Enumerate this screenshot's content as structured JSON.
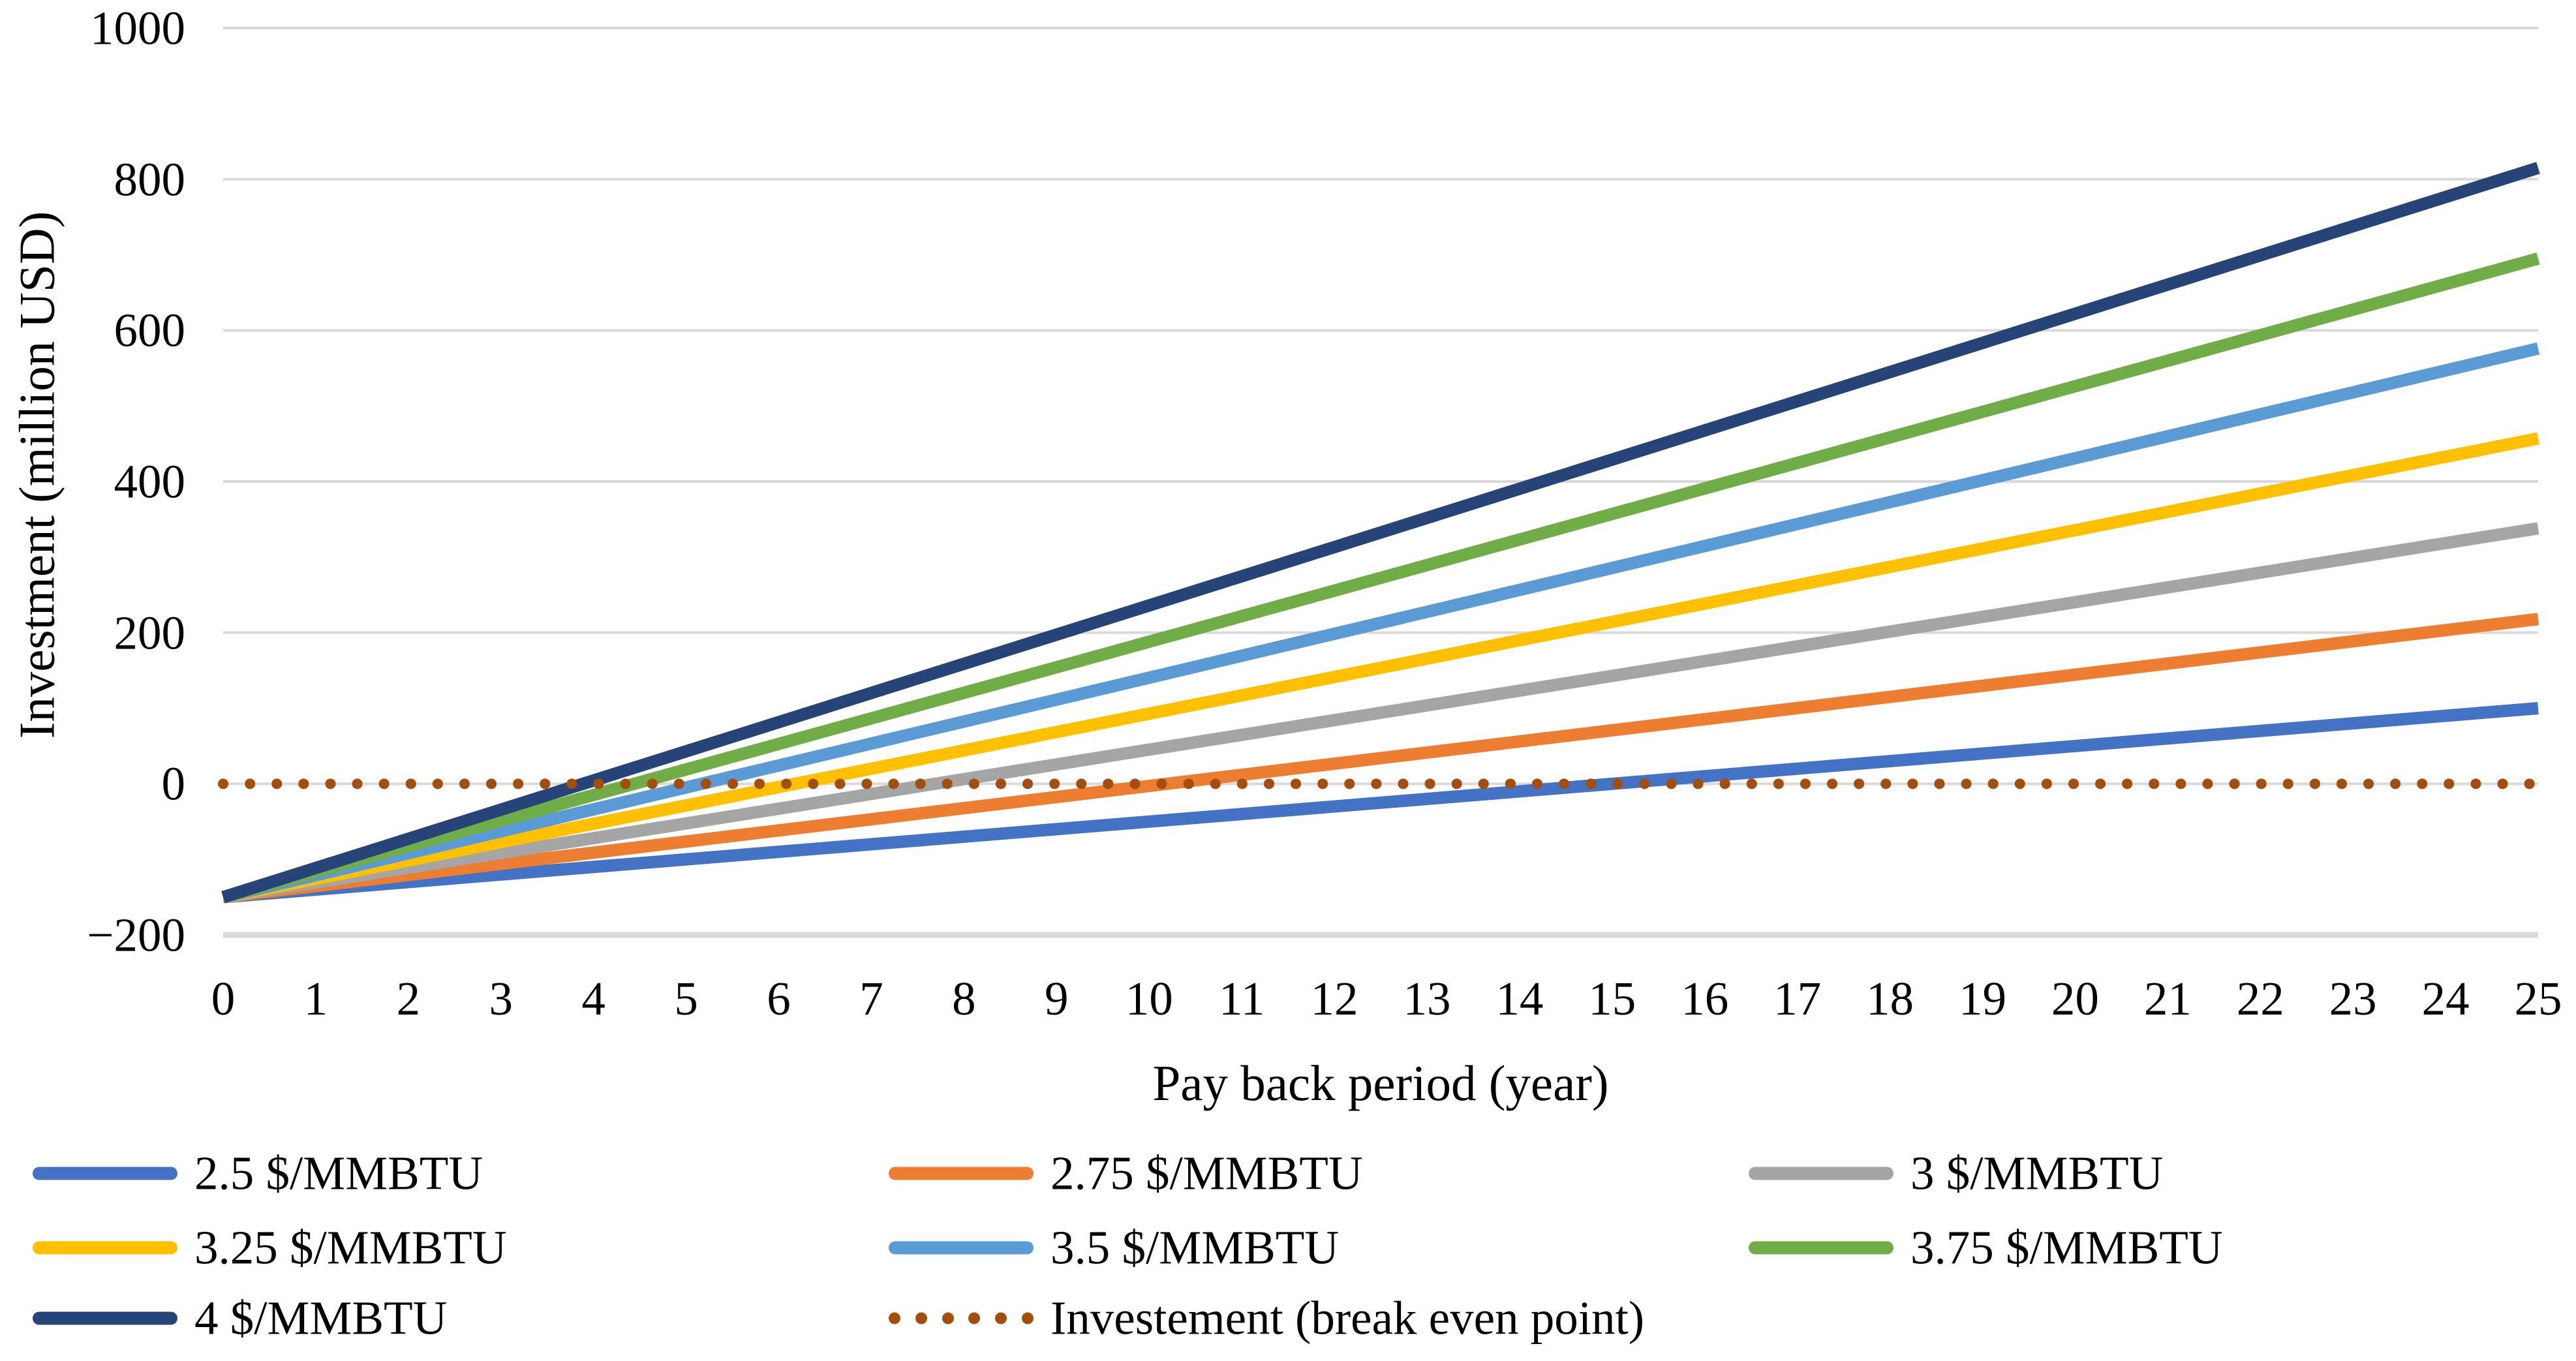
{
  "chart_data": {
    "type": "line",
    "title": "",
    "xlabel": "Pay back period (year)",
    "ylabel": "Investment (million USD)",
    "xlim": [
      0,
      25
    ],
    "ylim": [
      -200,
      1000
    ],
    "x_ticks": [
      0,
      1,
      2,
      3,
      4,
      5,
      6,
      7,
      8,
      9,
      10,
      11,
      12,
      13,
      14,
      15,
      16,
      17,
      18,
      19,
      20,
      21,
      22,
      23,
      24,
      25
    ],
    "y_ticks": [
      -200,
      0,
      200,
      400,
      600,
      800,
      1000
    ],
    "y_tick_labels": [
      "−200",
      "0",
      "200",
      "400",
      "600",
      "800",
      "1000"
    ],
    "grid": "horizontal",
    "gridline_color": "#D9D9D9",
    "axis_line_color": "#D9D9D9",
    "text_color": "#000000",
    "legend_position": "bottom, 3 columns",
    "series": [
      {
        "name": "2.5 $/MMBTU",
        "color": "#4472C4",
        "style": "solid",
        "x": [
          0,
          25
        ],
        "y": [
          -150,
          100
        ]
      },
      {
        "name": "2.75 $/MMBTU",
        "color": "#ED7D31",
        "style": "solid",
        "x": [
          0,
          25
        ],
        "y": [
          -150,
          218
        ]
      },
      {
        "name": "3 $/MMBTU",
        "color": "#A5A5A5",
        "style": "solid",
        "x": [
          0,
          25
        ],
        "y": [
          -150,
          338
        ]
      },
      {
        "name": "3.25 $/MMBTU",
        "color": "#FFC000",
        "style": "solid",
        "x": [
          0,
          25
        ],
        "y": [
          -150,
          457
        ]
      },
      {
        "name": "3.5 $/MMBTU",
        "color": "#5B9BD5",
        "style": "solid",
        "x": [
          0,
          25
        ],
        "y": [
          -150,
          576
        ]
      },
      {
        "name": "3.75 $/MMBTU",
        "color": "#70AD47",
        "style": "solid",
        "x": [
          0,
          25
        ],
        "y": [
          -150,
          695
        ]
      },
      {
        "name": "4 $/MMBTU",
        "color": "#264478",
        "style": "solid",
        "x": [
          0,
          25
        ],
        "y": [
          -150,
          815
        ]
      },
      {
        "name": "Investement (break even point)",
        "color": "#A34D0F",
        "style": "dotted",
        "x": [
          0,
          25
        ],
        "y": [
          0,
          0
        ]
      }
    ]
  }
}
